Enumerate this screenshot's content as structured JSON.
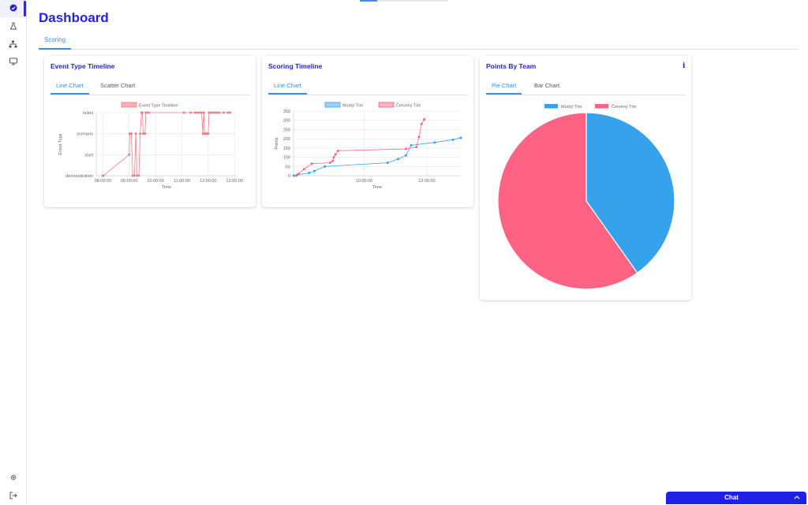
{
  "header": {
    "title": "Dashboard"
  },
  "main_tabs": [
    {
      "label": "Scoring"
    }
  ],
  "sidebar": {
    "items": [
      "dashboard-icon",
      "flask-icon",
      "network-icon",
      "monitor-icon"
    ],
    "bottom": [
      "gear-icon",
      "logout-icon"
    ]
  },
  "cards": {
    "event_type": {
      "title": "Event Type Timeline",
      "tabs": [
        "Line Chart",
        "Scatter Chart"
      ]
    },
    "scoring": {
      "title": "Scoring Timeline",
      "tabs": [
        "Line Chart"
      ]
    },
    "points": {
      "title": "Points By Team",
      "tabs": [
        "Pie Chart",
        "Bar Chart"
      ],
      "info": "i"
    }
  },
  "chat": {
    "label": "Chat"
  },
  "colors": {
    "accent": "#2424d6",
    "tab_blue": "#3a8ee6",
    "blue_series": "#36a2eb",
    "red_series": "#ff6384",
    "event_series": "#f07c85"
  },
  "chart_data": [
    {
      "type": "line",
      "title": "",
      "series": [
        {
          "name": "Event Type Timeline",
          "points": [
            [
              "08:00",
              "demonstration"
            ],
            [
              "08:01",
              "demonstration"
            ],
            [
              "09:00",
              "start"
            ],
            [
              "09:01",
              "scenario"
            ],
            [
              "09:05",
              "scenario"
            ],
            [
              "09:08",
              "demonstration"
            ],
            [
              "09:12",
              "demonstration"
            ],
            [
              "09:15",
              "scenario"
            ],
            [
              "09:18",
              "demonstration"
            ],
            [
              "09:22",
              "demonstration"
            ],
            [
              "09:25",
              "scenario"
            ],
            [
              "09:28",
              "ticket"
            ],
            [
              "09:30",
              "ticket"
            ],
            [
              "09:32",
              "scenario"
            ],
            [
              "09:36",
              "scenario"
            ],
            [
              "09:38",
              "ticket"
            ],
            [
              "09:40",
              "ticket"
            ],
            [
              "09:45",
              "ticket"
            ],
            [
              "11:05",
              "ticket"
            ],
            [
              "11:20",
              "ticket"
            ],
            [
              "11:30",
              "ticket"
            ],
            [
              "11:35",
              "ticket"
            ],
            [
              "11:40",
              "ticket"
            ],
            [
              "11:45",
              "ticket"
            ],
            [
              "11:48",
              "scenario"
            ],
            [
              "11:50",
              "ticket"
            ],
            [
              "11:52",
              "scenario"
            ],
            [
              "11:55",
              "scenario"
            ],
            [
              "11:58",
              "scenario"
            ],
            [
              "12:00",
              "scenario"
            ],
            [
              "12:02",
              "ticket"
            ],
            [
              "12:05",
              "ticket"
            ],
            [
              "12:10",
              "ticket"
            ],
            [
              "12:15",
              "ticket"
            ],
            [
              "12:20",
              "ticket"
            ],
            [
              "12:25",
              "ticket"
            ],
            [
              "12:35",
              "ticket"
            ],
            [
              "12:45",
              "ticket"
            ],
            [
              "12:50",
              "ticket"
            ]
          ]
        }
      ],
      "xlabel": "Time",
      "ylabel": "Event Type",
      "categories_y": [
        "demonstration",
        "start",
        "scenario",
        "ticket"
      ],
      "x_ticks": [
        "08:00:00",
        "09:00:00",
        "10:00:00",
        "11:00:00",
        "12:00:00",
        "13:00:00"
      ],
      "xlim": [
        "07:45",
        "13:05"
      ],
      "legend": "top",
      "grid": true
    },
    {
      "type": "line",
      "title": "",
      "series": [
        {
          "name": "Modrý Tím",
          "points": [
            [
              "07:45",
              0
            ],
            [
              "07:52",
              5
            ],
            [
              "08:15",
              15
            ],
            [
              "08:25",
              25
            ],
            [
              "08:45",
              50
            ],
            [
              "10:45",
              70
            ],
            [
              "11:05",
              90
            ],
            [
              "11:20",
              110
            ],
            [
              "11:30",
              165
            ],
            [
              "12:15",
              180
            ],
            [
              "12:50",
              195
            ],
            [
              "13:05",
              205
            ]
          ]
        },
        {
          "name": "Červený Tím",
          "points": [
            [
              "07:50",
              0
            ],
            [
              "07:55",
              10
            ],
            [
              "08:05",
              35
            ],
            [
              "08:20",
              65
            ],
            [
              "08:55",
              70
            ],
            [
              "09:00",
              80
            ],
            [
              "09:02",
              100
            ],
            [
              "09:05",
              115
            ],
            [
              "09:10",
              135
            ],
            [
              "11:20",
              145
            ],
            [
              "11:40",
              155
            ],
            [
              "11:45",
              210
            ],
            [
              "11:50",
              280
            ],
            [
              "11:55",
              305
            ]
          ]
        }
      ],
      "xlabel": "Time",
      "ylabel": "Points",
      "y_ticks": [
        0,
        50,
        100,
        150,
        200,
        250,
        300,
        350
      ],
      "ylim": [
        0,
        350
      ],
      "x_ticks": [
        "10:00:00",
        "12:00:00"
      ],
      "xlim": [
        "07:45",
        "13:05"
      ],
      "legend": "top",
      "grid": true
    },
    {
      "type": "pie",
      "title": "",
      "series": [
        {
          "name": "Modrý Tím",
          "value": 205
        },
        {
          "name": "Červený Tím",
          "value": 305
        }
      ],
      "legend": "top"
    }
  ]
}
